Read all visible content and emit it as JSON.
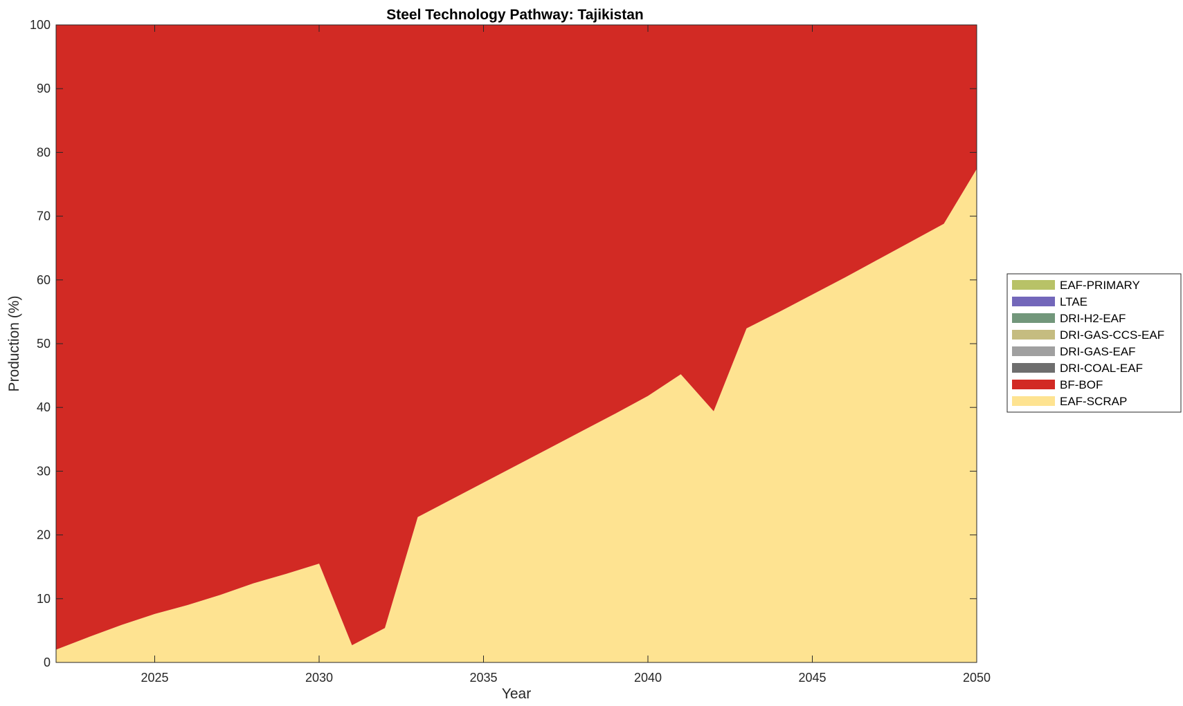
{
  "chart_data": {
    "type": "area",
    "stacked": true,
    "title": "Steel Technology Pathway: Tajikistan",
    "xlabel": "Year",
    "ylabel": "Production (%)",
    "xlim": [
      2022,
      2050
    ],
    "ylim": [
      0,
      100
    ],
    "xticks": [
      2025,
      2030,
      2035,
      2040,
      2045,
      2050
    ],
    "yticks": [
      0,
      10,
      20,
      30,
      40,
      50,
      60,
      70,
      80,
      90,
      100
    ],
    "grid": false,
    "legend_position": "right",
    "x": [
      2022,
      2023,
      2024,
      2025,
      2026,
      2027,
      2028,
      2029,
      2030,
      2031,
      2032,
      2033,
      2034,
      2035,
      2036,
      2037,
      2038,
      2039,
      2040,
      2041,
      2042,
      2043,
      2044,
      2045,
      2046,
      2047,
      2048,
      2049,
      2050
    ],
    "series": [
      {
        "name": "EAF-SCRAP",
        "color": "#FEE391",
        "values": [
          2.0,
          4.0,
          5.9,
          7.6,
          9.0,
          10.6,
          12.4,
          13.9,
          15.5,
          2.7,
          5.4,
          22.8,
          25.5,
          28.2,
          30.9,
          33.6,
          36.3,
          39.0,
          41.8,
          45.2,
          39.4,
          52.4,
          55.0,
          57.7,
          60.4,
          63.2,
          66.0,
          68.8,
          77.4
        ]
      },
      {
        "name": "BF-BOF",
        "color": "#D22A24",
        "values": [
          98.0,
          96.0,
          94.1,
          92.4,
          91.0,
          89.4,
          87.6,
          86.1,
          84.5,
          97.3,
          94.6,
          77.2,
          74.5,
          71.8,
          69.1,
          66.4,
          63.7,
          61.0,
          58.2,
          54.8,
          60.6,
          47.6,
          45.0,
          42.3,
          39.6,
          36.8,
          34.0,
          31.2,
          22.6
        ]
      },
      {
        "name": "DRI-COAL-EAF",
        "color": "#6E6E6E",
        "values": [
          0,
          0,
          0,
          0,
          0,
          0,
          0,
          0,
          0,
          0,
          0,
          0,
          0,
          0,
          0,
          0,
          0,
          0,
          0,
          0,
          0,
          0,
          0,
          0,
          0,
          0,
          0,
          0,
          0
        ]
      },
      {
        "name": "DRI-GAS-EAF",
        "color": "#A0A0A0",
        "values": [
          0,
          0,
          0,
          0,
          0,
          0,
          0,
          0,
          0,
          0,
          0,
          0,
          0,
          0,
          0,
          0,
          0,
          0,
          0,
          0,
          0,
          0,
          0,
          0,
          0,
          0,
          0,
          0,
          0
        ]
      },
      {
        "name": "DRI-GAS-CCS-EAF",
        "color": "#C5BC80",
        "values": [
          0,
          0,
          0,
          0,
          0,
          0,
          0,
          0,
          0,
          0,
          0,
          0,
          0,
          0,
          0,
          0,
          0,
          0,
          0,
          0,
          0,
          0,
          0,
          0,
          0,
          0,
          0,
          0,
          0
        ]
      },
      {
        "name": "DRI-H2-EAF",
        "color": "#72977B",
        "values": [
          0,
          0,
          0,
          0,
          0,
          0,
          0,
          0,
          0,
          0,
          0,
          0,
          0,
          0,
          0,
          0,
          0,
          0,
          0,
          0,
          0,
          0,
          0,
          0,
          0,
          0,
          0,
          0,
          0
        ]
      },
      {
        "name": "LTAE",
        "color": "#7367BA",
        "values": [
          0,
          0,
          0,
          0,
          0,
          0,
          0,
          0,
          0,
          0,
          0,
          0,
          0,
          0,
          0,
          0,
          0,
          0,
          0,
          0,
          0,
          0,
          0,
          0,
          0,
          0,
          0,
          0,
          0
        ]
      },
      {
        "name": "EAF-PRIMARY",
        "color": "#B8C267",
        "values": [
          0,
          0,
          0,
          0,
          0,
          0,
          0,
          0,
          0,
          0,
          0,
          0,
          0,
          0,
          0,
          0,
          0,
          0,
          0,
          0,
          0,
          0,
          0,
          0,
          0,
          0,
          0,
          0,
          0
        ]
      }
    ],
    "legend_order": [
      "EAF-PRIMARY",
      "LTAE",
      "DRI-H2-EAF",
      "DRI-GAS-CCS-EAF",
      "DRI-GAS-EAF",
      "DRI-COAL-EAF",
      "BF-BOF",
      "EAF-SCRAP"
    ]
  }
}
